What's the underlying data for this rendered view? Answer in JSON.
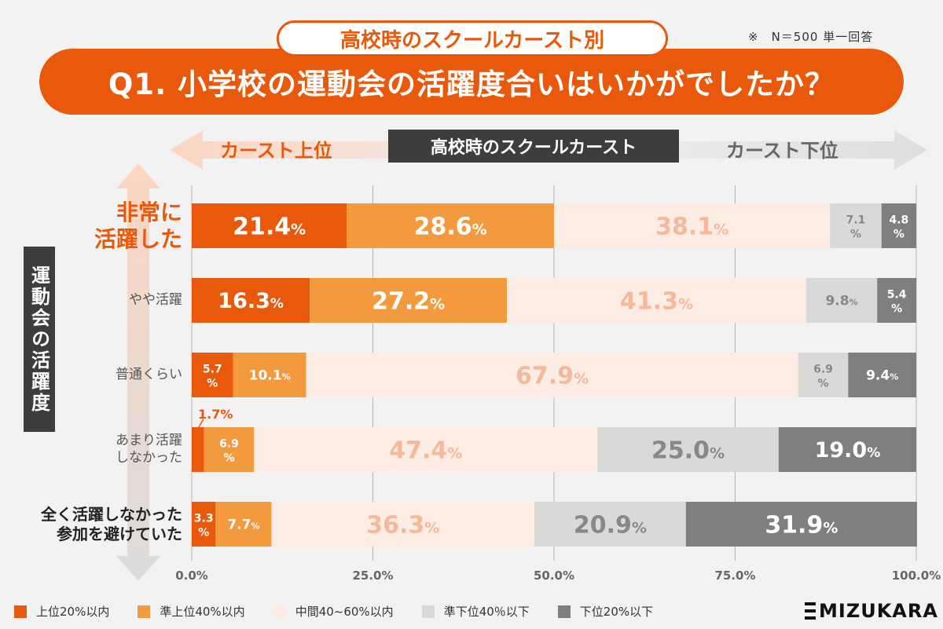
{
  "header": {
    "subtitle": "高校時のスクールカースト別",
    "note": "※　N＝500 単一回答",
    "title": "Q1. 小学校の運動会の活躍度合いはいかがでしたか？"
  },
  "caste_axis": {
    "top_label": "カースト上位",
    "center_label": "高校時のスクールカースト",
    "bottom_label": "カースト下位"
  },
  "y_axis_title": "運動会の活躍度",
  "colors": {
    "accent": "#e8590c",
    "top20": "#e8590c",
    "semi_top40": "#f39a3f",
    "middle": "#fdece3",
    "semi_bottom40": "#d9d9d9",
    "bottom20": "#7f7f7f"
  },
  "chart_data": {
    "type": "bar",
    "orientation": "horizontal",
    "stacked": "100%",
    "categories": [
      "非常に\n活躍した",
      "やや活躍",
      "普通くらい",
      "あまり活躍\nしなかった",
      "全く活躍しなかった\n参加を避けていた"
    ],
    "series": [
      {
        "name": "上位20%以内",
        "values": [
          21.4,
          16.3,
          5.7,
          1.7,
          3.3
        ]
      },
      {
        "name": "準上位40%以内",
        "values": [
          28.6,
          27.2,
          10.1,
          6.9,
          7.7
        ]
      },
      {
        "name": "中間40~60%以内",
        "values": [
          38.1,
          41.3,
          67.9,
          47.4,
          36.3
        ]
      },
      {
        "name": "準下位40％以下",
        "values": [
          7.1,
          9.8,
          6.9,
          25.0,
          20.9
        ]
      },
      {
        "name": "下位20%以下",
        "values": [
          4.8,
          5.4,
          9.4,
          19.0,
          31.9
        ]
      }
    ],
    "x_ticks": [
      "0.0%",
      "25.0%",
      "50.0%",
      "75.0%",
      "100.0%"
    ],
    "xlim": [
      0,
      100
    ],
    "grid": true,
    "legend": "bottom"
  },
  "brand": {
    "logo_text": "MIZUKARA"
  }
}
